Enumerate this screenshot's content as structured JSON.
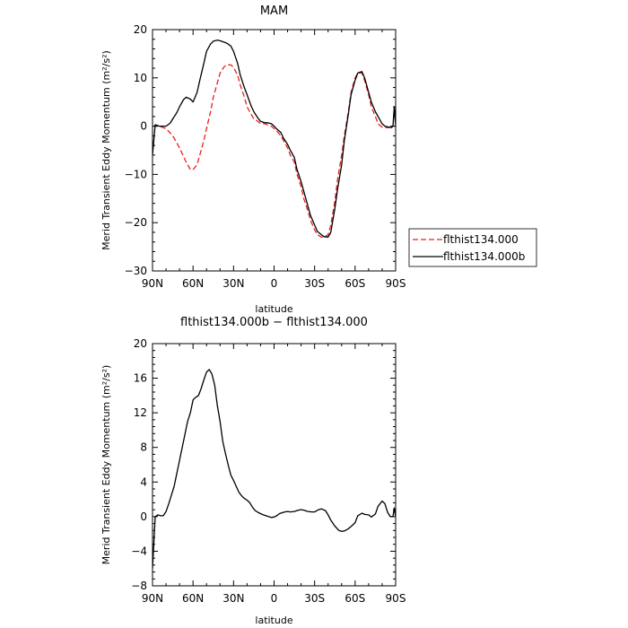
{
  "chart_data": [
    {
      "type": "line",
      "title": "MAM",
      "xlabel": "latitude",
      "ylabel": "Merid Transient Eddy Momentum  (m²/s²)",
      "xlim": [
        90,
        -90
      ],
      "ylim": [
        -30,
        20
      ],
      "xticks": [
        90,
        60,
        30,
        0,
        -30,
        -60,
        -90
      ],
      "xtick_labels": [
        "90N",
        "60N",
        "30N",
        "0",
        "30S",
        "60S",
        "90S"
      ],
      "yticks": [
        -30,
        -20,
        -10,
        0,
        10,
        20
      ],
      "ytick_labels": [
        "−30",
        "−20",
        "−10",
        "0",
        "10",
        "20"
      ],
      "legend": "right",
      "series": [
        {
          "name": "flthist134.000",
          "color": "#e8201e",
          "dash": "dashed",
          "x": [
            90,
            85,
            80,
            75,
            70,
            65,
            62,
            60,
            57,
            55,
            52,
            50,
            47,
            45,
            42,
            40,
            37,
            35,
            32,
            30,
            27,
            25,
            22,
            20,
            17,
            15,
            12,
            10,
            7,
            5,
            2,
            0,
            -2,
            -5,
            -7,
            -10,
            -12,
            -15,
            -17,
            -20,
            -22,
            -25,
            -27,
            -30,
            -32,
            -35,
            -37,
            -40,
            -42,
            -45,
            -47,
            -50,
            -52,
            -55,
            -57,
            -60,
            -62,
            -65,
            -67,
            -70,
            -72,
            -75,
            -77,
            -80,
            -82,
            -85,
            -87,
            -90
          ],
          "y": [
            0,
            0,
            -0.5,
            -2,
            -4.5,
            -7.5,
            -9,
            -9,
            -8,
            -6,
            -3,
            -0.5,
            3,
            6,
            9,
            11,
            12.3,
            12.7,
            12.7,
            12.2,
            10.5,
            8.5,
            6,
            4,
            2.5,
            1.5,
            1,
            0.5,
            0.5,
            0.3,
            0,
            -0.5,
            -1,
            -2,
            -3,
            -4.5,
            -6,
            -7.5,
            -10,
            -12.5,
            -15,
            -17.5,
            -19.5,
            -21.5,
            -22.5,
            -23,
            -23,
            -22.5,
            -20.5,
            -15.5,
            -11,
            -6,
            -2,
            3,
            7,
            10,
            11,
            11,
            9.5,
            6.5,
            4,
            2,
            0.5,
            -0.2,
            -0.3,
            -0.3,
            0,
            0
          ]
        },
        {
          "name": "flthist134.000b",
          "color": "#000000",
          "dash": "solid",
          "x": [
            90,
            88,
            85,
            80,
            77,
            75,
            72,
            70,
            67,
            65,
            62,
            60,
            57,
            55,
            52,
            50,
            47,
            45,
            42,
            40,
            37,
            35,
            32,
            30,
            27,
            25,
            22,
            20,
            17,
            15,
            12,
            10,
            7,
            5,
            2,
            0,
            -2,
            -5,
            -7,
            -10,
            -12,
            -15,
            -17,
            -20,
            -22,
            -25,
            -27,
            -30,
            -32,
            -35,
            -37,
            -40,
            -42,
            -45,
            -47,
            -50,
            -52,
            -55,
            -57,
            -60,
            -62,
            -65,
            -67,
            -70,
            -72,
            -75,
            -77,
            -80,
            -82,
            -85,
            -87,
            -88,
            -89,
            -90
          ],
          "y": [
            -6,
            0.3,
            0,
            0,
            0.6,
            1.5,
            2.8,
            4,
            5.5,
            6,
            5.6,
            5,
            7,
            9.5,
            13,
            15.5,
            17,
            17.6,
            17.8,
            17.7,
            17.4,
            17.2,
            16.6,
            15.5,
            13,
            10.5,
            8,
            6.5,
            4.2,
            3,
            1.7,
            1,
            0.7,
            0.7,
            0.5,
            0,
            -0.6,
            -1.3,
            -2.5,
            -3.8,
            -5,
            -6.5,
            -9,
            -11.5,
            -13.5,
            -16.5,
            -18.5,
            -20.5,
            -21.8,
            -22.5,
            -22.9,
            -23,
            -22,
            -17,
            -13,
            -8,
            -3,
            2.5,
            6.5,
            9.5,
            11,
            11.3,
            10,
            7,
            5,
            3,
            2,
            0.5,
            0,
            -0.2,
            -0.3,
            0,
            4,
            0
          ]
        }
      ]
    },
    {
      "type": "line",
      "title": "flthist134.000b − flthist134.000",
      "xlabel": "latitude",
      "ylabel": "Merid Transient Eddy Momentum  (m²/s²)",
      "xlim": [
        90,
        -90
      ],
      "ylim": [
        -8,
        20
      ],
      "xticks": [
        90,
        60,
        30,
        0,
        -30,
        -60,
        -90
      ],
      "xtick_labels": [
        "90N",
        "60N",
        "30N",
        "0",
        "30S",
        "60S",
        "90S"
      ],
      "yticks": [
        -8,
        -4,
        0,
        4,
        8,
        12,
        16,
        20
      ],
      "ytick_labels": [
        "−8",
        "−4",
        "0",
        "4",
        "8",
        "12",
        "16",
        "20"
      ],
      "series": [
        {
          "color": "#000000",
          "dash": "solid",
          "x": [
            90,
            89,
            88,
            86,
            84,
            82,
            80,
            78,
            76,
            74,
            72,
            70,
            68,
            66,
            64,
            62,
            60,
            58,
            56,
            54,
            52,
            50,
            48,
            46,
            44,
            42,
            40,
            38,
            36,
            34,
            32,
            30,
            28,
            26,
            24,
            22,
            20,
            18,
            16,
            14,
            12,
            10,
            8,
            6,
            4,
            2,
            0,
            -2,
            -4,
            -6,
            -8,
            -10,
            -12,
            -15,
            -18,
            -20,
            -22,
            -25,
            -28,
            -30,
            -33,
            -35,
            -38,
            -40,
            -42,
            -45,
            -48,
            -50,
            -52,
            -55,
            -58,
            -60,
            -62,
            -65,
            -67,
            -70,
            -72,
            -75,
            -77,
            -80,
            -82,
            -84,
            -86,
            -88,
            -89,
            -90
          ],
          "y": [
            -6,
            -3,
            0,
            0.2,
            0.1,
            0.1,
            0.6,
            1.5,
            2.5,
            3.5,
            5,
            6.5,
            8,
            9.5,
            11,
            12,
            13.5,
            13.8,
            14,
            14.8,
            15.8,
            16.7,
            17,
            16.5,
            15.2,
            12.8,
            11,
            8.7,
            7.3,
            6,
            4.8,
            4.2,
            3.5,
            2.8,
            2.4,
            2.1,
            1.9,
            1.6,
            1.1,
            0.7,
            0.5,
            0.35,
            0.2,
            0.1,
            0,
            -0.1,
            -0.05,
            0.1,
            0.35,
            0.45,
            0.55,
            0.6,
            0.55,
            0.6,
            0.75,
            0.8,
            0.75,
            0.6,
            0.55,
            0.55,
            0.8,
            0.9,
            0.7,
            0.2,
            -0.4,
            -1.1,
            -1.6,
            -1.7,
            -1.65,
            -1.4,
            -1,
            -0.7,
            0.1,
            0.4,
            0.25,
            0.2,
            -0.05,
            0.3,
            1.2,
            1.8,
            1.5,
            0.5,
            0,
            0,
            1,
            0
          ]
        }
      ]
    }
  ]
}
